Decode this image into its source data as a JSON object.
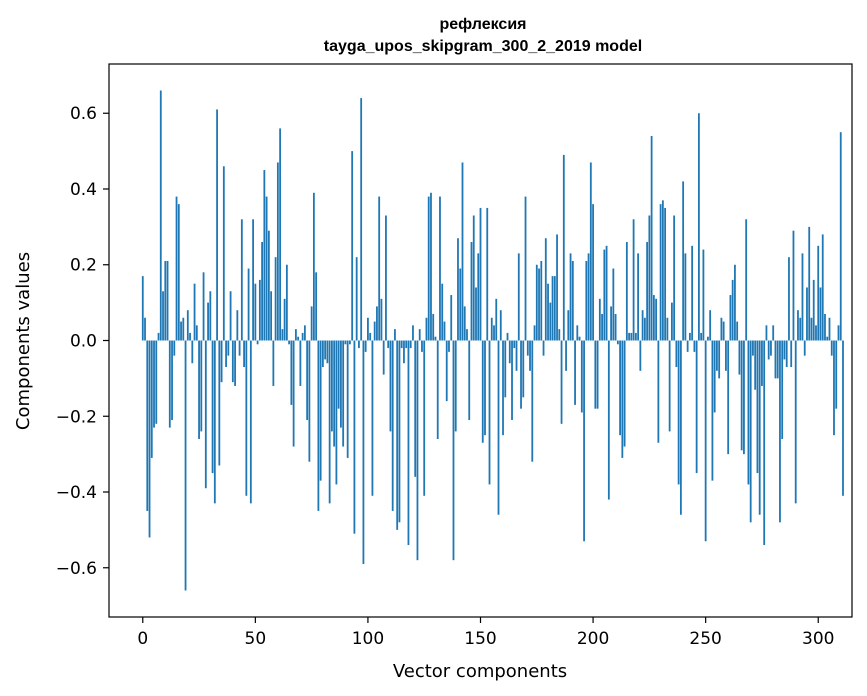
{
  "chart_data": {
    "type": "bar",
    "title": "рефлексия",
    "subtitle": "tayga_upos_skipgram_300_2_2019 model",
    "xlabel": "Vector components",
    "ylabel": "Components values",
    "xlim": [
      -15,
      315
    ],
    "ylim": [
      -0.73,
      0.73
    ],
    "xticks": [
      0,
      50,
      100,
      150,
      200,
      250,
      300
    ],
    "yticks": [
      -0.6,
      -0.4,
      -0.2,
      0.0,
      0.2,
      0.4,
      0.6
    ],
    "ytick_labels": [
      "−0.6",
      "−0.4",
      "−0.2",
      "0.0",
      "0.2",
      "0.4",
      "0.6"
    ],
    "bar_color": "#1f77b4",
    "grid": false,
    "x_start": 0,
    "values": [
      0.17,
      0.06,
      -0.45,
      -0.52,
      -0.31,
      -0.23,
      -0.22,
      0.02,
      0.66,
      0.13,
      0.21,
      0.21,
      -0.23,
      -0.21,
      -0.04,
      0.38,
      0.36,
      0.05,
      0.06,
      -0.66,
      0.08,
      0.02,
      -0.06,
      0.15,
      0.04,
      -0.26,
      -0.24,
      0.18,
      -0.39,
      0.1,
      0.13,
      -0.35,
      -0.43,
      0.61,
      -0.33,
      -0.11,
      0.46,
      -0.07,
      -0.04,
      0.13,
      -0.11,
      -0.12,
      0.08,
      -0.04,
      0.32,
      -0.07,
      -0.41,
      0.19,
      -0.43,
      0.32,
      0.15,
      -0.01,
      0.16,
      0.26,
      0.45,
      0.38,
      0.29,
      0.13,
      -0.12,
      0.22,
      0.47,
      0.56,
      0.03,
      0.11,
      0.2,
      -0.01,
      -0.17,
      -0.28,
      0.03,
      0.01,
      -0.12,
      0.02,
      0.04,
      -0.21,
      -0.32,
      0.09,
      0.39,
      0.18,
      -0.45,
      -0.37,
      -0.07,
      -0.05,
      -0.06,
      -0.43,
      -0.24,
      -0.28,
      -0.38,
      -0.18,
      -0.23,
      -0.28,
      -0.01,
      -0.31,
      -0.01,
      0.5,
      -0.51,
      0.22,
      -0.02,
      0.64,
      -0.59,
      -0.03,
      0.06,
      0.02,
      -0.41,
      0.05,
      0.09,
      0.38,
      0.11,
      -0.09,
      0.33,
      -0.02,
      -0.24,
      -0.45,
      0.03,
      -0.5,
      -0.48,
      -0.02,
      -0.06,
      -0.02,
      -0.54,
      -0.02,
      0.04,
      -0.36,
      -0.58,
      0.03,
      -0.03,
      -0.41,
      0.06,
      0.38,
      0.39,
      0.07,
      0.01,
      -0.26,
      0.38,
      0.15,
      0.05,
      -0.16,
      -0.03,
      0.12,
      -0.58,
      -0.24,
      0.27,
      0.19,
      0.47,
      0.09,
      0.03,
      -0.21,
      0.26,
      0.33,
      0.14,
      0.23,
      0.35,
      -0.27,
      -0.25,
      0.35,
      -0.38,
      0.06,
      0.04,
      0.11,
      -0.46,
      0.08,
      -0.25,
      -0.15,
      0.02,
      -0.06,
      -0.21,
      -0.02,
      -0.08,
      0.23,
      -0.18,
      -0.15,
      0.38,
      -0.04,
      -0.08,
      -0.32,
      0.04,
      0.2,
      0.19,
      0.21,
      -0.04,
      0.27,
      0.15,
      0.1,
      0.17,
      0.17,
      0.28,
      0.03,
      -0.22,
      0.49,
      -0.08,
      0.08,
      0.23,
      0.21,
      -0.17,
      0.04,
      0.01,
      -0.19,
      -0.53,
      0.21,
      0.23,
      0.47,
      0.36,
      -0.18,
      -0.18,
      0.11,
      0.07,
      0.24,
      0.25,
      -0.42,
      0.09,
      0.19,
      0.07,
      -0.01,
      -0.25,
      -0.31,
      -0.28,
      0.26,
      0.02,
      0.02,
      0.32,
      0.02,
      0.23,
      -0.08,
      0.08,
      0.06,
      0.26,
      0.33,
      0.54,
      0.12,
      0.11,
      -0.27,
      0.36,
      0.37,
      0.35,
      0.06,
      -0.24,
      0.1,
      0.33,
      -0.07,
      -0.38,
      -0.46,
      0.42,
      0.23,
      -0.03,
      0.02,
      0.25,
      -0.03,
      -0.35,
      0.6,
      0.02,
      0.24,
      -0.53,
      0.01,
      0.08,
      -0.37,
      -0.19,
      -0.08,
      -0.1,
      0.06,
      0.05,
      -0.08,
      -0.3,
      0.12,
      0.16,
      0.2,
      0.05,
      -0.09,
      -0.29,
      -0.3,
      0.32,
      -0.38,
      -0.48,
      -0.04,
      -0.13,
      -0.35,
      -0.46,
      -0.12,
      -0.54,
      0.04,
      -0.05,
      -0.04,
      0.04,
      -0.1,
      -0.1,
      -0.48,
      -0.26,
      -0.05,
      -0.07,
      0.22,
      -0.07,
      0.29,
      -0.43,
      0.08,
      0.06,
      0.23,
      -0.04,
      0.14,
      0.3,
      0.06,
      0.16,
      0.04,
      0.25,
      0.14,
      0.28,
      0.07,
      0.01,
      0.06,
      -0.04,
      -0.25,
      -0.18,
      0.04,
      0.55,
      -0.41
    ]
  }
}
